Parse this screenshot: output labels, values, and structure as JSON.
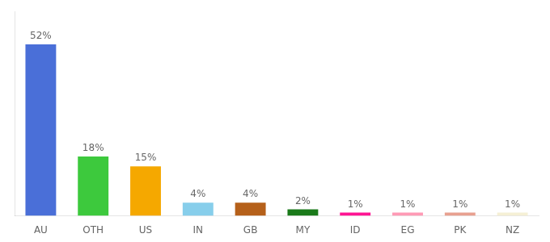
{
  "chart_data": {
    "type": "bar",
    "categories": [
      "AU",
      "OTH",
      "US",
      "IN",
      "GB",
      "MY",
      "ID",
      "EG",
      "PK",
      "NZ"
    ],
    "values": [
      52,
      18,
      15,
      4,
      4,
      2,
      1,
      1,
      1,
      1
    ],
    "value_labels": [
      "52%",
      "18%",
      "15%",
      "4%",
      "4%",
      "2%",
      "1%",
      "1%",
      "1%",
      "1%"
    ],
    "colors": [
      "#4a6fd8",
      "#3dc93d",
      "#f5a800",
      "#87ceeb",
      "#b5601a",
      "#1a7a1a",
      "#ff1493",
      "#ff9ab5",
      "#e8a090",
      "#f5f0d5"
    ],
    "ylim": [
      0,
      62
    ],
    "yticks": [],
    "tick_labels": "x",
    "data_labels": true,
    "grid": false
  }
}
